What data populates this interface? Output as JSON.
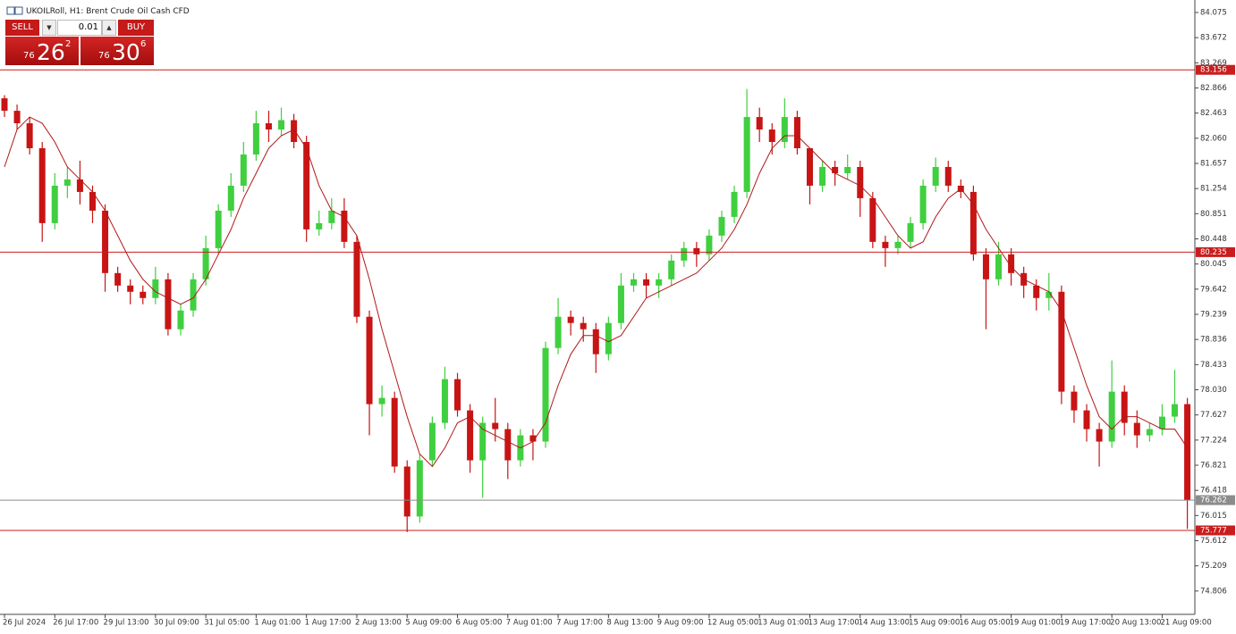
{
  "header": {
    "title": "UKOILRoll, H1:  Brent Crude Oil Cash CFD"
  },
  "trade_panel": {
    "sell": "SELL",
    "buy": "BUY",
    "volume": "0.01",
    "sell_price": {
      "prefix": "76",
      "big": "26",
      "sup": "2"
    },
    "buy_price": {
      "prefix": "76",
      "big": "30",
      "sup": "6"
    }
  },
  "chart_data": {
    "type": "candlestick",
    "categories": [
      "26 Jul 2024",
      null,
      null,
      null,
      "26 Jul 17:00",
      null,
      null,
      null,
      "29 Jul 13:00",
      null,
      null,
      null,
      "30 Jul 09:00",
      null,
      null,
      null,
      "31 Jul 05:00",
      null,
      null,
      null,
      "1 Aug 01:00",
      null,
      null,
      null,
      "1 Aug 17:00",
      null,
      null,
      null,
      "2 Aug 13:00",
      null,
      null,
      null,
      "5 Aug 09:00",
      null,
      null,
      null,
      "6 Aug 05:00",
      null,
      null,
      null,
      "7 Aug 01:00",
      null,
      null,
      null,
      "7 Aug 17:00",
      null,
      null,
      null,
      "8 Aug 13:00",
      null,
      null,
      null,
      "9 Aug 09:00",
      null,
      null,
      null,
      "12 Aug 05:00",
      null,
      null,
      null,
      "13 Aug 01:00",
      null,
      null,
      null,
      "13 Aug 17:00",
      null,
      null,
      null,
      "14 Aug 13:00",
      null,
      null,
      null,
      "15 Aug 09:00",
      null,
      null,
      null,
      "16 Aug 05:00",
      null,
      null,
      null,
      "19 Aug 01:00",
      null,
      null,
      null,
      "19 Aug 17:00",
      null,
      null,
      null,
      "20 Aug 13:00",
      null,
      null,
      null,
      "21 Aug 09:00",
      null,
      null
    ],
    "open": [
      82.7,
      82.5,
      82.3,
      81.9,
      80.7,
      81.3,
      81.4,
      81.2,
      80.9,
      79.9,
      79.7,
      79.6,
      79.5,
      79.8,
      79.0,
      79.3,
      79.8,
      80.3,
      80.9,
      81.3,
      81.8,
      82.3,
      82.2,
      82.35,
      82.0,
      80.6,
      80.7,
      80.9,
      80.4,
      79.2,
      77.8,
      77.9,
      76.8,
      76.0,
      76.9,
      77.5,
      78.2,
      77.7,
      76.9,
      77.5,
      77.4,
      76.9,
      77.3,
      77.2,
      78.7,
      79.2,
      79.1,
      79.0,
      78.6,
      79.1,
      79.7,
      79.8,
      79.7,
      79.8,
      80.1,
      80.3,
      80.2,
      80.5,
      80.8,
      81.2,
      82.4,
      82.2,
      82.0,
      82.4,
      81.9,
      81.3,
      81.6,
      81.5,
      81.6,
      81.1,
      80.4,
      80.3,
      80.4,
      80.7,
      81.3,
      81.6,
      81.3,
      81.2,
      80.2,
      79.8,
      80.2,
      79.9,
      79.7,
      79.5,
      79.6,
      78.0,
      77.7,
      77.4,
      77.2,
      78.0,
      77.5,
      77.3,
      77.4,
      77.6,
      77.8
    ],
    "high": [
      82.75,
      82.6,
      82.4,
      82.0,
      81.5,
      81.6,
      81.7,
      81.3,
      81.0,
      80.0,
      79.8,
      79.7,
      80.0,
      79.9,
      79.4,
      79.9,
      80.5,
      81.0,
      81.5,
      82.0,
      82.5,
      82.5,
      82.55,
      82.45,
      82.1,
      80.9,
      81.1,
      81.1,
      80.5,
      79.3,
      78.1,
      78.0,
      76.9,
      77.0,
      77.6,
      78.4,
      78.3,
      77.8,
      77.6,
      77.9,
      77.5,
      77.4,
      77.4,
      78.8,
      79.5,
      79.3,
      79.2,
      79.1,
      79.2,
      79.9,
      79.9,
      79.9,
      79.9,
      80.2,
      80.4,
      80.4,
      80.6,
      80.9,
      81.3,
      82.85,
      82.55,
      82.3,
      82.7,
      82.5,
      81.9,
      81.7,
      81.7,
      81.8,
      81.7,
      81.2,
      80.5,
      80.5,
      80.8,
      81.4,
      81.75,
      81.7,
      81.4,
      81.3,
      80.3,
      80.4,
      80.3,
      80.0,
      79.8,
      79.9,
      79.7,
      78.1,
      77.8,
      77.5,
      78.5,
      78.1,
      77.7,
      77.5,
      77.8,
      78.35,
      77.9
    ],
    "low": [
      82.4,
      82.2,
      81.8,
      80.4,
      80.6,
      81.1,
      81.0,
      80.7,
      79.6,
      79.6,
      79.4,
      79.4,
      79.4,
      78.9,
      78.9,
      79.2,
      79.7,
      80.2,
      80.8,
      81.2,
      81.7,
      82.0,
      82.1,
      81.9,
      80.4,
      80.5,
      80.6,
      80.3,
      79.1,
      77.3,
      77.6,
      76.7,
      75.75,
      75.9,
      76.8,
      77.4,
      77.6,
      76.7,
      76.3,
      77.2,
      76.6,
      76.8,
      76.9,
      77.1,
      78.6,
      78.9,
      78.8,
      78.3,
      78.5,
      79.0,
      79.6,
      79.5,
      79.5,
      79.7,
      80.0,
      80.0,
      80.1,
      80.4,
      80.7,
      81.1,
      82.0,
      81.8,
      81.9,
      81.8,
      81.0,
      81.2,
      81.3,
      81.4,
      80.8,
      80.3,
      80.0,
      80.2,
      80.3,
      80.6,
      81.2,
      81.2,
      81.1,
      80.1,
      79.0,
      79.7,
      79.7,
      79.5,
      79.3,
      79.3,
      77.8,
      77.5,
      77.2,
      76.8,
      77.1,
      77.3,
      77.1,
      77.2,
      77.3,
      77.5,
      75.8
    ],
    "close": [
      82.5,
      82.3,
      81.9,
      80.7,
      81.3,
      81.4,
      81.2,
      80.9,
      79.9,
      79.7,
      79.6,
      79.5,
      79.8,
      79.0,
      79.3,
      79.8,
      80.3,
      80.9,
      81.3,
      81.8,
      82.3,
      82.2,
      82.35,
      82.0,
      80.6,
      80.7,
      80.9,
      80.4,
      79.2,
      77.8,
      77.9,
      76.8,
      76.0,
      76.9,
      77.5,
      78.2,
      77.7,
      76.9,
      77.5,
      77.4,
      76.9,
      77.3,
      77.2,
      78.7,
      79.2,
      79.1,
      79.0,
      78.6,
      79.1,
      79.7,
      79.8,
      79.7,
      79.8,
      80.1,
      80.3,
      80.2,
      80.5,
      80.8,
      81.2,
      82.4,
      82.2,
      82.0,
      82.4,
      81.9,
      81.3,
      81.6,
      81.5,
      81.6,
      81.1,
      80.4,
      80.3,
      80.4,
      80.7,
      81.3,
      81.6,
      81.3,
      81.2,
      80.2,
      79.8,
      80.2,
      79.9,
      79.7,
      79.5,
      79.6,
      78.0,
      77.7,
      77.4,
      77.2,
      78.0,
      77.5,
      77.3,
      77.4,
      77.6,
      77.8,
      76.26
    ],
    "up_color": "#3fcf3f",
    "down_color": "#c81414",
    "moving_average": {
      "color": "#b01818",
      "values": [
        81.6,
        82.2,
        82.4,
        82.3,
        82.0,
        81.6,
        81.4,
        81.2,
        80.9,
        80.5,
        80.1,
        79.8,
        79.6,
        79.5,
        79.4,
        79.5,
        79.8,
        80.2,
        80.6,
        81.1,
        81.5,
        81.9,
        82.1,
        82.2,
        81.9,
        81.3,
        80.9,
        80.8,
        80.5,
        79.8,
        79.0,
        78.3,
        77.6,
        77.0,
        76.8,
        77.1,
        77.5,
        77.6,
        77.4,
        77.3,
        77.2,
        77.1,
        77.2,
        77.5,
        78.1,
        78.6,
        78.9,
        78.9,
        78.8,
        78.9,
        79.2,
        79.5,
        79.6,
        79.7,
        79.8,
        79.9,
        80.1,
        80.3,
        80.6,
        81.0,
        81.5,
        81.9,
        82.1,
        82.1,
        81.9,
        81.7,
        81.5,
        81.4,
        81.3,
        81.1,
        80.8,
        80.5,
        80.3,
        80.4,
        80.8,
        81.1,
        81.25,
        81.0,
        80.6,
        80.3,
        80.0,
        79.8,
        79.7,
        79.6,
        79.3,
        78.7,
        78.1,
        77.6,
        77.4,
        77.6,
        77.6,
        77.5,
        77.4,
        77.4,
        77.1
      ]
    },
    "levels": [
      {
        "value": 83.156,
        "color": "#c81e1e"
      },
      {
        "value": 80.235,
        "color": "#c81e1e"
      },
      {
        "value": 76.262,
        "color": "#8c8c8c"
      },
      {
        "value": 75.777,
        "color": "#c81e1e"
      }
    ],
    "ylim": [
      74.432,
      84.275
    ],
    "yticks": [
      84.075,
      83.672,
      83.269,
      82.866,
      82.463,
      {
        "value": 82.06,
        "label": "82.060"
      },
      81.657,
      81.254,
      80.851,
      80.448,
      80.045,
      79.642,
      79.239,
      78.836,
      78.433,
      {
        "value": 78.03,
        "label": "78.030"
      },
      77.627,
      77.224,
      76.821,
      76.418,
      76.015,
      75.612,
      75.209,
      74.806
    ],
    "grid": false
  }
}
